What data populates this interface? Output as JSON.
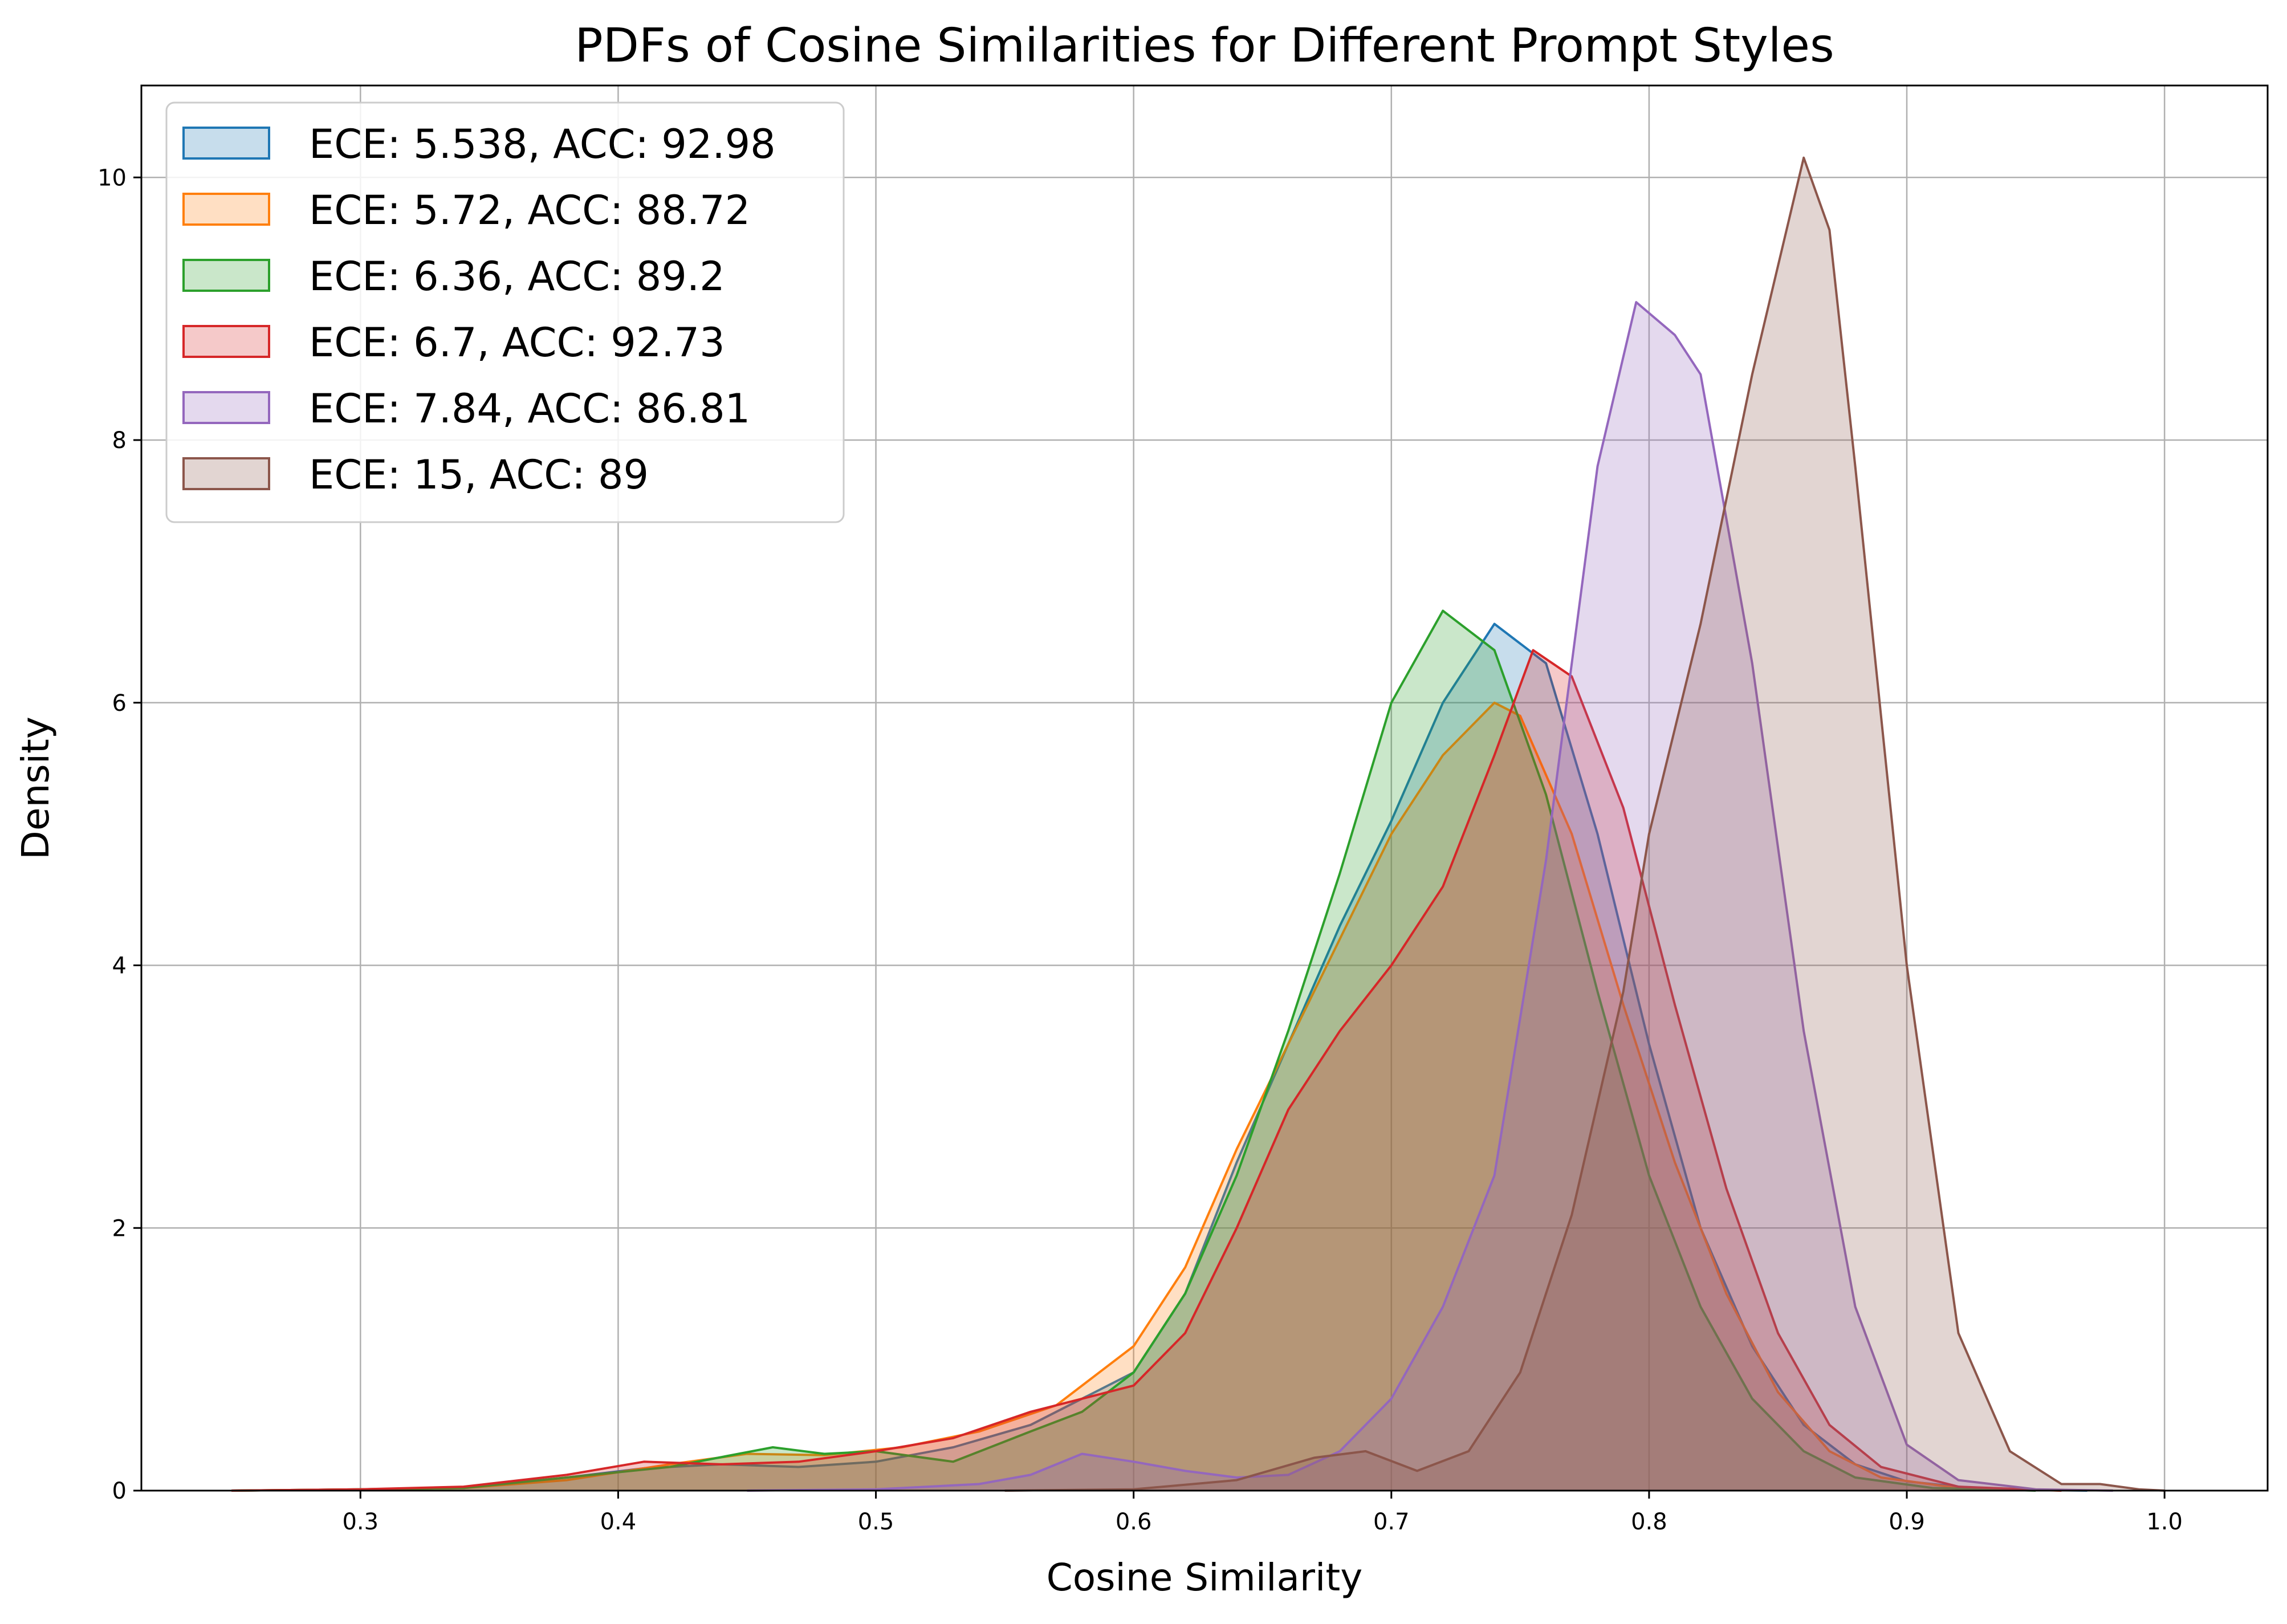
{
  "chart_data": {
    "type": "area",
    "title": "PDFs of Cosine Similarities for Different Prompt Styles",
    "xlabel": "Cosine Similarity",
    "ylabel": "Density",
    "xlim": [
      0.215,
      1.04
    ],
    "ylim": [
      0,
      10.7
    ],
    "xticks": [
      0.3,
      0.4,
      0.5,
      0.6,
      0.7,
      0.8,
      0.9,
      1.0
    ],
    "xtick_labels": [
      "0.3",
      "0.4",
      "0.5",
      "0.6",
      "0.7",
      "0.8",
      "0.9",
      "1.0"
    ],
    "yticks": [
      0,
      2,
      4,
      6,
      8,
      10
    ],
    "ytick_labels": [
      "0",
      "2",
      "4",
      "6",
      "8",
      "10"
    ],
    "grid": true,
    "legend_position": "top-left",
    "series": [
      {
        "name": "ECE: 5.538, ACC: 92.98",
        "color": "#1f77b4",
        "points": [
          [
            0.25,
            0
          ],
          [
            0.3,
            0.01
          ],
          [
            0.34,
            0.02
          ],
          [
            0.38,
            0.1
          ],
          [
            0.41,
            0.17
          ],
          [
            0.44,
            0.2
          ],
          [
            0.47,
            0.18
          ],
          [
            0.5,
            0.22
          ],
          [
            0.53,
            0.33
          ],
          [
            0.56,
            0.5
          ],
          [
            0.6,
            0.9
          ],
          [
            0.62,
            1.5
          ],
          [
            0.64,
            2.5
          ],
          [
            0.66,
            3.4
          ],
          [
            0.68,
            4.3
          ],
          [
            0.7,
            5.1
          ],
          [
            0.72,
            6.0
          ],
          [
            0.74,
            6.6
          ],
          [
            0.76,
            6.3
          ],
          [
            0.78,
            5.0
          ],
          [
            0.8,
            3.4
          ],
          [
            0.82,
            2.0
          ],
          [
            0.84,
            1.1
          ],
          [
            0.86,
            0.5
          ],
          [
            0.88,
            0.2
          ],
          [
            0.9,
            0.07
          ],
          [
            0.93,
            0.01
          ],
          [
            0.97,
            0
          ]
        ]
      },
      {
        "name": "ECE: 5.72, ACC: 88.72",
        "color": "#ff7f0e",
        "points": [
          [
            0.25,
            0
          ],
          [
            0.3,
            0.01
          ],
          [
            0.34,
            0.02
          ],
          [
            0.38,
            0.08
          ],
          [
            0.42,
            0.2
          ],
          [
            0.45,
            0.28
          ],
          [
            0.48,
            0.27
          ],
          [
            0.51,
            0.33
          ],
          [
            0.54,
            0.45
          ],
          [
            0.57,
            0.65
          ],
          [
            0.6,
            1.1
          ],
          [
            0.62,
            1.7
          ],
          [
            0.64,
            2.6
          ],
          [
            0.66,
            3.4
          ],
          [
            0.68,
            4.2
          ],
          [
            0.7,
            5.0
          ],
          [
            0.72,
            5.6
          ],
          [
            0.74,
            6.0
          ],
          [
            0.75,
            5.9
          ],
          [
            0.77,
            5.0
          ],
          [
            0.79,
            3.7
          ],
          [
            0.81,
            2.5
          ],
          [
            0.83,
            1.5
          ],
          [
            0.85,
            0.75
          ],
          [
            0.87,
            0.3
          ],
          [
            0.89,
            0.1
          ],
          [
            0.92,
            0.02
          ],
          [
            0.96,
            0
          ]
        ]
      },
      {
        "name": "ECE: 6.36, ACC: 89.2",
        "color": "#2ca02c",
        "points": [
          [
            0.25,
            0
          ],
          [
            0.3,
            0.01
          ],
          [
            0.34,
            0.02
          ],
          [
            0.38,
            0.1
          ],
          [
            0.42,
            0.18
          ],
          [
            0.46,
            0.33
          ],
          [
            0.48,
            0.28
          ],
          [
            0.5,
            0.3
          ],
          [
            0.53,
            0.22
          ],
          [
            0.56,
            0.45
          ],
          [
            0.58,
            0.6
          ],
          [
            0.6,
            0.9
          ],
          [
            0.62,
            1.5
          ],
          [
            0.64,
            2.4
          ],
          [
            0.66,
            3.5
          ],
          [
            0.68,
            4.7
          ],
          [
            0.7,
            6.0
          ],
          [
            0.72,
            6.7
          ],
          [
            0.74,
            6.4
          ],
          [
            0.76,
            5.3
          ],
          [
            0.78,
            3.8
          ],
          [
            0.8,
            2.4
          ],
          [
            0.82,
            1.4
          ],
          [
            0.84,
            0.7
          ],
          [
            0.86,
            0.3
          ],
          [
            0.88,
            0.1
          ],
          [
            0.91,
            0.02
          ],
          [
            0.95,
            0
          ]
        ]
      },
      {
        "name": "ECE: 6.7, ACC: 92.73",
        "color": "#d62728",
        "points": [
          [
            0.25,
            0
          ],
          [
            0.3,
            0.01
          ],
          [
            0.34,
            0.03
          ],
          [
            0.38,
            0.12
          ],
          [
            0.41,
            0.22
          ],
          [
            0.44,
            0.2
          ],
          [
            0.47,
            0.22
          ],
          [
            0.5,
            0.3
          ],
          [
            0.53,
            0.4
          ],
          [
            0.56,
            0.6
          ],
          [
            0.6,
            0.8
          ],
          [
            0.62,
            1.2
          ],
          [
            0.64,
            2.0
          ],
          [
            0.66,
            2.9
          ],
          [
            0.68,
            3.5
          ],
          [
            0.7,
            4.0
          ],
          [
            0.72,
            4.6
          ],
          [
            0.74,
            5.6
          ],
          [
            0.755,
            6.4
          ],
          [
            0.77,
            6.2
          ],
          [
            0.79,
            5.2
          ],
          [
            0.81,
            3.7
          ],
          [
            0.83,
            2.3
          ],
          [
            0.85,
            1.2
          ],
          [
            0.87,
            0.5
          ],
          [
            0.89,
            0.18
          ],
          [
            0.92,
            0.03
          ],
          [
            0.96,
            0
          ]
        ]
      },
      {
        "name": "ECE: 7.84, ACC: 86.81",
        "color": "#9467bd",
        "points": [
          [
            0.45,
            0
          ],
          [
            0.5,
            0.01
          ],
          [
            0.54,
            0.05
          ],
          [
            0.56,
            0.12
          ],
          [
            0.58,
            0.28
          ],
          [
            0.6,
            0.22
          ],
          [
            0.62,
            0.15
          ],
          [
            0.64,
            0.1
          ],
          [
            0.66,
            0.12
          ],
          [
            0.68,
            0.3
          ],
          [
            0.7,
            0.7
          ],
          [
            0.72,
            1.4
          ],
          [
            0.74,
            2.4
          ],
          [
            0.76,
            4.8
          ],
          [
            0.78,
            7.8
          ],
          [
            0.795,
            9.05
          ],
          [
            0.81,
            8.8
          ],
          [
            0.82,
            8.5
          ],
          [
            0.84,
            6.3
          ],
          [
            0.86,
            3.5
          ],
          [
            0.88,
            1.4
          ],
          [
            0.9,
            0.35
          ],
          [
            0.92,
            0.08
          ],
          [
            0.95,
            0.01
          ],
          [
            0.98,
            0
          ]
        ]
      },
      {
        "name": "ECE: 15, ACC: 89",
        "color": "#8c564b",
        "points": [
          [
            0.55,
            0
          ],
          [
            0.6,
            0.01
          ],
          [
            0.64,
            0.08
          ],
          [
            0.67,
            0.25
          ],
          [
            0.69,
            0.3
          ],
          [
            0.71,
            0.15
          ],
          [
            0.73,
            0.3
          ],
          [
            0.75,
            0.9
          ],
          [
            0.77,
            2.1
          ],
          [
            0.79,
            3.8
          ],
          [
            0.8,
            5.0
          ],
          [
            0.82,
            6.6
          ],
          [
            0.84,
            8.5
          ],
          [
            0.86,
            10.15
          ],
          [
            0.87,
            9.6
          ],
          [
            0.88,
            7.8
          ],
          [
            0.9,
            4.0
          ],
          [
            0.92,
            1.2
          ],
          [
            0.94,
            0.3
          ],
          [
            0.96,
            0.05
          ],
          [
            0.975,
            0.05
          ],
          [
            0.99,
            0.01
          ],
          [
            1.0,
            0
          ]
        ]
      }
    ]
  }
}
